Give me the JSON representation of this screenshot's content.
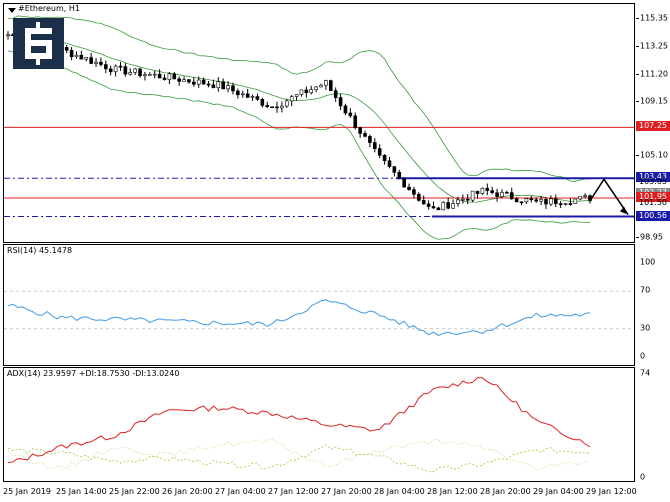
{
  "chart_title": "#Ethereum, H1",
  "logo_icon": "brand-logo-icon",
  "price_axis": {
    "ticks": [
      "115.35",
      "113.25",
      "111.20",
      "109.15",
      "105.10",
      "98.95"
    ],
    "tick_values": [
      115.35,
      113.25,
      111.2,
      109.15,
      105.1,
      98.95
    ],
    "tags": [
      {
        "text": "107.25",
        "value": 107.25,
        "color": "#e02020"
      },
      {
        "text": "103.43",
        "value": 103.43,
        "color": "#1a1aa8"
      },
      {
        "text": "103.05",
        "value": 103.05,
        "color": "none"
      },
      {
        "text": "102.27",
        "value": 102.27,
        "color": "#888888"
      },
      {
        "text": "101.95",
        "value": 101.95,
        "color": "#e02020"
      },
      {
        "text": "101.50",
        "value": 101.5,
        "color": "none"
      },
      {
        "text": "100.56",
        "value": 100.56,
        "color": "#1a1aa8"
      }
    ]
  },
  "rsi": {
    "title": "RSI(14) 45.1478",
    "ticks": [
      "100",
      "70",
      "30",
      "0"
    ],
    "tick_values": [
      100,
      70,
      30,
      0
    ],
    "levels": [
      70,
      30
    ],
    "range": [
      0,
      100
    ]
  },
  "adx": {
    "title": "ADX(14) 23.9597 +DI:18.7530 -DI:13.0240",
    "ticks": [
      "74",
      "0"
    ],
    "tick_values": [
      74,
      0
    ],
    "range": [
      0,
      74
    ]
  },
  "time_axis": [
    "25 Jan 2019",
    "25 Jan 14:00",
    "25 Jan 22:00",
    "26 Jan 20:00",
    "27 Jan 04:00",
    "27 Jan 12:00",
    "27 Jan 20:00",
    "28 Jan 04:00",
    "28 Jan 12:00",
    "28 Jan 20:00",
    "29 Jan 04:00",
    "29 Jan 12:00"
  ],
  "colors": {
    "candle": "#000000",
    "bollinger": "#3a9a3a",
    "resistance": "#e02020",
    "channel": "#1a1aa8",
    "rsi_line": "#3d9be9",
    "adx_line": "#e02020",
    "plus_di": "#9acd32",
    "minus_di": "#c8c864"
  },
  "chart_data": [
    {
      "type": "line",
      "title": "#Ethereum, H1",
      "x": [
        "25 Jan 2019",
        "25 Jan 14:00",
        "25 Jan 22:00",
        "26 Jan 20:00",
        "27 Jan 04:00",
        "27 Jan 12:00",
        "27 Jan 20:00",
        "28 Jan 04:00",
        "28 Jan 12:00",
        "28 Jan 20:00",
        "29 Jan 04:00",
        "29 Jan 12:00"
      ],
      "ylim": [
        98.5,
        116.5
      ],
      "series": [
        {
          "values": [
            114.2,
            113.1,
            111.6,
            111.0,
            110.4,
            108.8,
            110.6,
            105.0,
            101.0,
            102.5,
            101.6,
            101.95
          ]
        }
      ],
      "horizontal_lines": [
        107.25,
        103.43,
        101.95,
        100.56
      ]
    },
    {
      "type": "line",
      "title": "RSI(14) 45.1478",
      "ylim": [
        0,
        100
      ],
      "series": [
        {
          "values": [
            55,
            42,
            40,
            38,
            36,
            35,
            60,
            45,
            25,
            28,
            44,
            45
          ]
        }
      ]
    },
    {
      "type": "line",
      "title": "ADX(14) 23.9597 +DI:18.7530 -DI:13.0240",
      "ylim": [
        0,
        74
      ],
      "series": [
        {
          "values": [
            10,
            22,
            30,
            48,
            50,
            46,
            38,
            34,
            62,
            72,
            40,
            24
          ]
        },
        {
          "values": [
            20,
            18,
            12,
            14,
            10,
            8,
            22,
            15,
            5,
            10,
            20,
            18.75
          ]
        },
        {
          "values": [
            18,
            6,
            22,
            16,
            24,
            26,
            8,
            20,
            26,
            22,
            6,
            13.02
          ]
        }
      ]
    }
  ]
}
